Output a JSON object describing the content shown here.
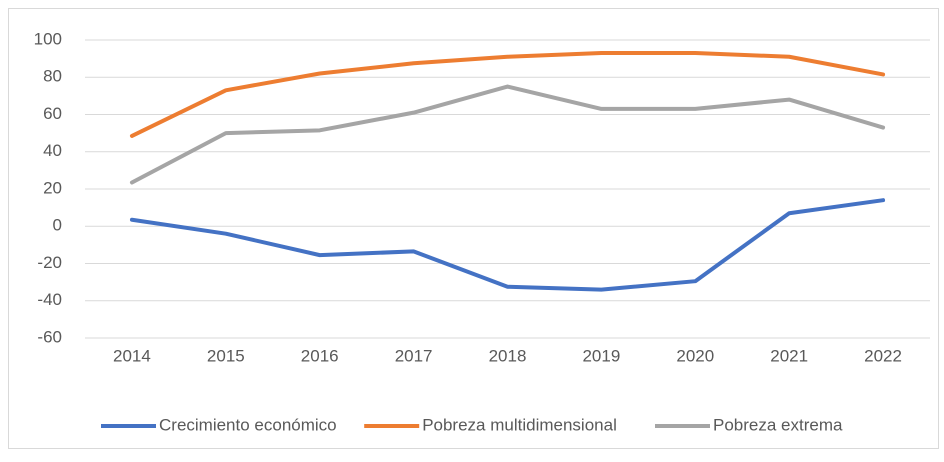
{
  "chart_data": {
    "type": "line",
    "categories": [
      "2014",
      "2015",
      "2016",
      "2017",
      "2018",
      "2019",
      "2020",
      "2021",
      "2022"
    ],
    "series": [
      {
        "name": "Crecimiento económico",
        "color": "#4472c4",
        "values": [
          3.5,
          -4,
          -15.5,
          -13.5,
          -32.5,
          -34,
          -29.5,
          7,
          14
        ]
      },
      {
        "name": "Pobreza multidimensional",
        "color": "#ed7d31",
        "values": [
          48.5,
          73,
          82,
          87.5,
          91,
          93,
          93,
          91,
          81.5
        ]
      },
      {
        "name": "Pobreza extrema",
        "color": "#a5a5a5",
        "values": [
          23.5,
          50,
          51.5,
          61,
          75,
          63,
          63,
          68,
          53
        ]
      }
    ],
    "ylim": [
      -60,
      100
    ],
    "yticks": [
      -60,
      -40,
      -20,
      0,
      20,
      40,
      60,
      80,
      100
    ],
    "grid": true,
    "legend": "bottom"
  }
}
